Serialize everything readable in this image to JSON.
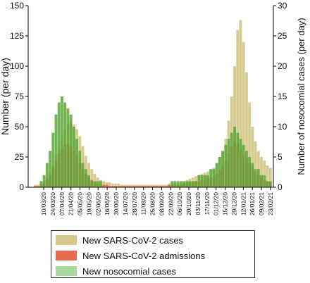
{
  "chart_data": {
    "type": "bar",
    "ylabel": "Number (per day)",
    "y2label": "Number of nosocomial cases (per day)",
    "ylim": [
      0,
      150
    ],
    "y2lim": [
      0,
      30
    ],
    "yticks": [
      0,
      25,
      50,
      75,
      100,
      125,
      150
    ],
    "y2ticks": [
      0,
      5,
      10,
      15,
      20,
      25,
      30
    ],
    "xticks": [
      "10/03/20",
      "24/03/20",
      "07/04/20",
      "21/04/20",
      "05/05/20",
      "19/05/20",
      "02/06/20",
      "16/06/20",
      "30/06/20",
      "14/07/20",
      "28/07/20",
      "11/08/20",
      "25/08/20",
      "08/09/20",
      "22/09/20",
      "06/10/20",
      "20/10/20",
      "03/11/20",
      "17/11/20",
      "01/12/20",
      "15/12/20",
      "29/12/20",
      "12/01/21",
      "26/01/21",
      "09/02/21",
      "23/02/21"
    ],
    "series": [
      {
        "name": "New SARS-CoV-2 cases",
        "axis": "left",
        "color": "#d4c98a",
        "values": [
          2,
          2,
          3,
          5,
          8,
          12,
          18,
          26,
          34,
          42,
          48,
          52,
          55,
          52,
          48,
          42,
          34,
          26,
          20,
          15,
          11,
          8,
          6,
          5,
          4,
          4,
          3,
          3,
          3,
          2,
          2,
          2,
          2,
          2,
          2,
          2,
          2,
          2,
          2,
          2,
          2,
          2,
          2,
          2,
          2,
          3,
          3,
          3,
          3,
          4,
          5,
          6,
          7,
          8,
          9,
          10,
          11,
          12,
          13,
          14,
          16,
          20,
          24,
          30,
          40,
          55,
          75,
          100,
          130,
          138,
          120,
          95,
          70,
          50,
          38,
          30,
          25,
          22,
          18,
          16
        ]
      },
      {
        "name": "New SARS-CoV-2 admissions",
        "axis": "left",
        "color": "#e86a4f",
        "values": [
          1,
          1,
          2,
          3,
          6,
          10,
          16,
          22,
          28,
          32,
          35,
          36,
          34,
          30,
          26,
          20,
          15,
          11,
          8,
          6,
          4,
          3,
          2,
          2,
          2,
          1,
          1,
          1,
          1,
          1,
          1,
          1,
          1,
          1,
          1,
          1,
          1,
          1,
          1,
          1,
          1,
          1,
          1,
          1,
          1,
          2,
          2,
          2,
          2,
          2,
          3,
          3,
          4,
          4,
          5,
          5,
          6,
          6,
          7,
          8,
          9,
          11,
          14,
          18,
          22,
          28,
          34,
          38,
          36,
          32,
          28,
          24,
          20,
          16,
          13,
          10,
          8,
          6,
          5,
          4
        ]
      },
      {
        "name": "New nosocomial cases",
        "axis": "right",
        "color": "#5ca83a",
        "values": [
          0,
          0,
          1,
          2,
          4,
          6,
          9,
          12,
          14,
          15,
          14,
          13,
          12,
          10,
          8,
          6,
          4,
          3,
          2,
          1,
          1,
          1,
          1,
          0,
          0,
          0,
          0,
          0,
          0,
          0,
          0,
          0,
          0,
          0,
          0,
          0,
          0,
          0,
          0,
          0,
          0,
          0,
          0,
          0,
          0,
          0,
          1,
          1,
          1,
          1,
          1,
          1,
          1,
          1,
          1,
          2,
          2,
          2,
          2,
          3,
          3,
          4,
          5,
          6,
          7,
          8,
          9,
          10,
          9,
          8,
          7,
          6,
          5,
          4,
          3,
          3,
          2,
          2,
          1,
          1
        ]
      }
    ],
    "legend_position": "bottom"
  }
}
